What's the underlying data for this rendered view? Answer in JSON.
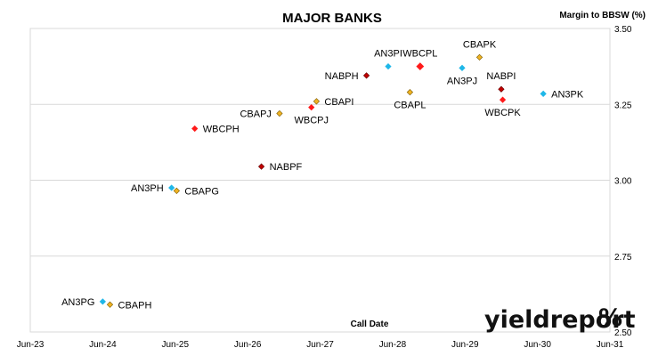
{
  "chart_data": {
    "type": "scatter",
    "title": "MAJOR BANKS",
    "xlabel": "Call Date",
    "ylabel": "Margin to BBSW (%)",
    "x_ticks": [
      "Jun-23",
      "Jun-24",
      "Jun-25",
      "Jun-26",
      "Jun-27",
      "Jun-28",
      "Jun-29",
      "Jun-30",
      "Jun-31"
    ],
    "y_ticks": [
      "3.50",
      "3.25",
      "3.00",
      "2.75",
      "2.50"
    ],
    "ylim": [
      2.5,
      3.5
    ],
    "xlim": [
      "Jun-23",
      "Jun-31"
    ],
    "grid": "horizontal",
    "colors": {
      "ANZ": "#1fb7e8",
      "CBA": "#f0b323",
      "NAB": "#c00000",
      "WBC": "#ff1a1a"
    },
    "points": [
      {
        "label": "AN3PG",
        "issuer": "ANZ",
        "x": 2024.42,
        "y": 2.6,
        "label_pos": "left"
      },
      {
        "label": "CBAPH",
        "issuer": "CBA",
        "x": 2024.52,
        "y": 2.59,
        "label_pos": "right"
      },
      {
        "label": "AN3PH",
        "issuer": "ANZ",
        "x": 2025.37,
        "y": 2.975,
        "label_pos": "left"
      },
      {
        "label": "CBAPG",
        "issuer": "CBA",
        "x": 2025.44,
        "y": 2.965,
        "label_pos": "right"
      },
      {
        "label": "WBCPH",
        "issuer": "WBC",
        "x": 2025.69,
        "y": 3.17,
        "label_pos": "right"
      },
      {
        "label": "NABPF",
        "issuer": "NAB",
        "x": 2026.61,
        "y": 3.045,
        "label_pos": "right"
      },
      {
        "label": "CBAPJ",
        "issuer": "CBA",
        "x": 2026.86,
        "y": 3.22,
        "label_pos": "left"
      },
      {
        "label": "WBCPJ",
        "issuer": "WBC",
        "x": 2027.3,
        "y": 3.24,
        "label_pos": "below"
      },
      {
        "label": "CBAPI",
        "issuer": "CBA",
        "x": 2027.37,
        "y": 3.26,
        "label_pos": "right"
      },
      {
        "label": "NABPH",
        "issuer": "NAB",
        "x": 2028.06,
        "y": 3.345,
        "label_pos": "left"
      },
      {
        "label": "AN3PI",
        "issuer": "ANZ",
        "x": 2028.36,
        "y": 3.375,
        "label_pos": "above"
      },
      {
        "label": "WBCPL",
        "issuer": "WBC",
        "x": 2028.8,
        "y": 3.375,
        "label_pos": "above"
      },
      {
        "label": "CBAPL",
        "issuer": "CBA",
        "x": 2028.66,
        "y": 3.29,
        "label_pos": "below"
      },
      {
        "label": "AN3PJ",
        "issuer": "ANZ",
        "x": 2029.38,
        "y": 3.37,
        "label_pos": "below"
      },
      {
        "label": "CBAPK",
        "issuer": "CBA",
        "x": 2029.62,
        "y": 3.405,
        "label_pos": "above"
      },
      {
        "label": "NABPI",
        "issuer": "NAB",
        "x": 2029.92,
        "y": 3.3,
        "label_pos": "above"
      },
      {
        "label": "WBCPK",
        "issuer": "WBC",
        "x": 2029.94,
        "y": 3.265,
        "label_pos": "below"
      },
      {
        "label": "AN3PK",
        "issuer": "ANZ",
        "x": 2030.5,
        "y": 3.285,
        "label_pos": "right"
      }
    ]
  },
  "logo": {
    "text": "yieldreport",
    "symbol": "%"
  }
}
